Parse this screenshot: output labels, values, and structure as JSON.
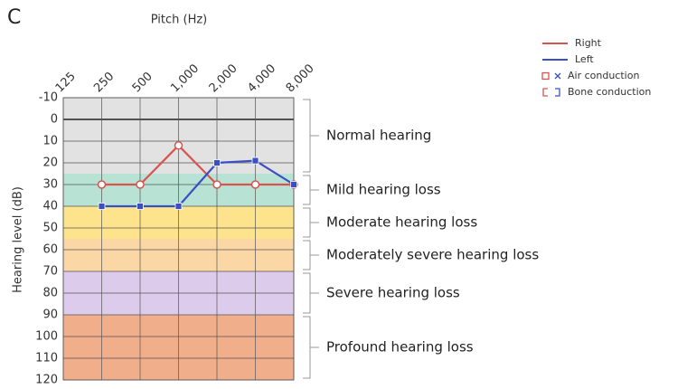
{
  "chart_data": {
    "type": "line",
    "panel_label": "C",
    "title": "Pitch (Hz)",
    "y_label": "Hearing level (dB)",
    "categories": [
      "125",
      "250",
      "500",
      "1,000",
      "2,000",
      "4,000",
      "8,000"
    ],
    "series": [
      {
        "name": "Right",
        "color": "#d9534f",
        "marker": "circle",
        "values": [
          null,
          30,
          30,
          12,
          30,
          30,
          30
        ]
      },
      {
        "name": "Left",
        "color": "#3b4fc4",
        "marker": "square",
        "values": [
          null,
          40,
          40,
          40,
          20,
          19,
          30
        ]
      }
    ],
    "legend_symbols": [
      "Air conduction",
      "Bone conduction"
    ],
    "ylim": [
      -10,
      120
    ],
    "inverted": true,
    "yticks": [
      -10,
      0,
      10,
      20,
      30,
      40,
      50,
      60,
      70,
      80,
      90,
      100,
      110,
      120
    ],
    "grid": true,
    "legend": "upper right",
    "bands": [
      {
        "label": "Normal hearing",
        "from": -10,
        "to": 25,
        "color": "#e2e2e2"
      },
      {
        "label": "Mild hearing loss",
        "from": 25,
        "to": 40,
        "color": "#b8e2d3"
      },
      {
        "label": "Moderate hearing loss",
        "from": 40,
        "to": 55,
        "color": "#fde38c"
      },
      {
        "label": "Moderately severe hearing loss",
        "from": 55,
        "to": 70,
        "color": "#fbd7a5"
      },
      {
        "label": "Severe hearing loss",
        "from": 70,
        "to": 90,
        "color": "#dccbea"
      },
      {
        "label": "Profound hearing loss",
        "from": 90,
        "to": 120,
        "color": "#f1ae8b"
      }
    ]
  }
}
